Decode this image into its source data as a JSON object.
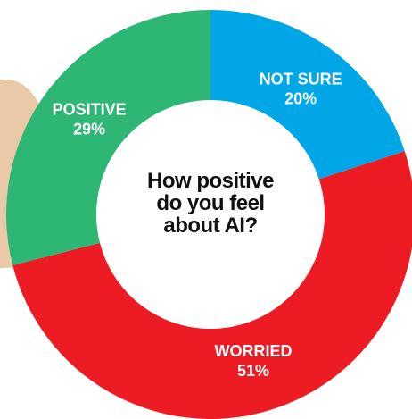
{
  "chart_data": {
    "type": "pie",
    "donut": true,
    "title": "How positive do you feel about AI?",
    "categories": [
      "NOT SURE",
      "WORRIED",
      "POSITIVE"
    ],
    "values": [
      20,
      51,
      29
    ],
    "value_labels": [
      "20%",
      "51%",
      "29%"
    ],
    "colors": [
      "#00a6e6",
      "#ed1c24",
      "#2db674"
    ]
  }
}
